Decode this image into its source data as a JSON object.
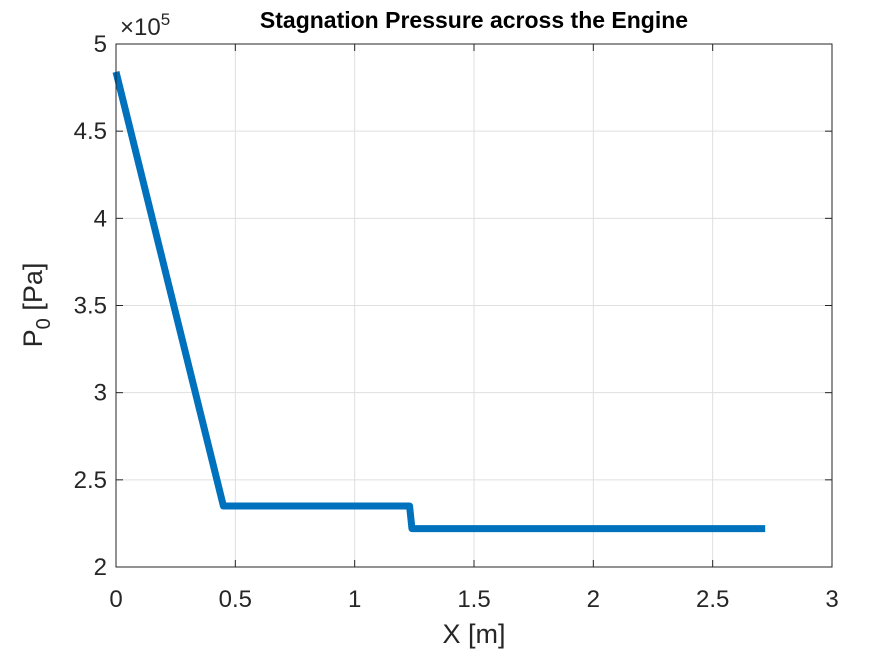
{
  "chart_data": {
    "type": "line",
    "title": "Stagnation Pressure across the Engine",
    "xlabel_main": "X [m]",
    "ylabel_main": "P",
    "ylabel_sub": "0",
    "ylabel_unit": " [Pa]",
    "y_exponent_base": "×10",
    "y_exponent_power": "5",
    "xlim": [
      0,
      3
    ],
    "ylim": [
      2,
      5
    ],
    "x_ticks": [
      0,
      0.5,
      1,
      1.5,
      2,
      2.5,
      3
    ],
    "x_tick_labels": [
      "0",
      "0.5",
      "1",
      "1.5",
      "2",
      "2.5",
      "3"
    ],
    "y_ticks": [
      2,
      2.5,
      3,
      3.5,
      4,
      4.5,
      5
    ],
    "y_tick_labels": [
      "2",
      "2.5",
      "3",
      "3.5",
      "4",
      "4.5",
      "5"
    ],
    "grid": true,
    "line_color": "#0072BD",
    "series": [
      {
        "x": [
          0,
          0.45,
          1.23,
          1.24,
          1.6,
          2.72
        ],
        "y": [
          4.84,
          2.35,
          2.35,
          2.22,
          2.22,
          2.22
        ]
      }
    ]
  }
}
